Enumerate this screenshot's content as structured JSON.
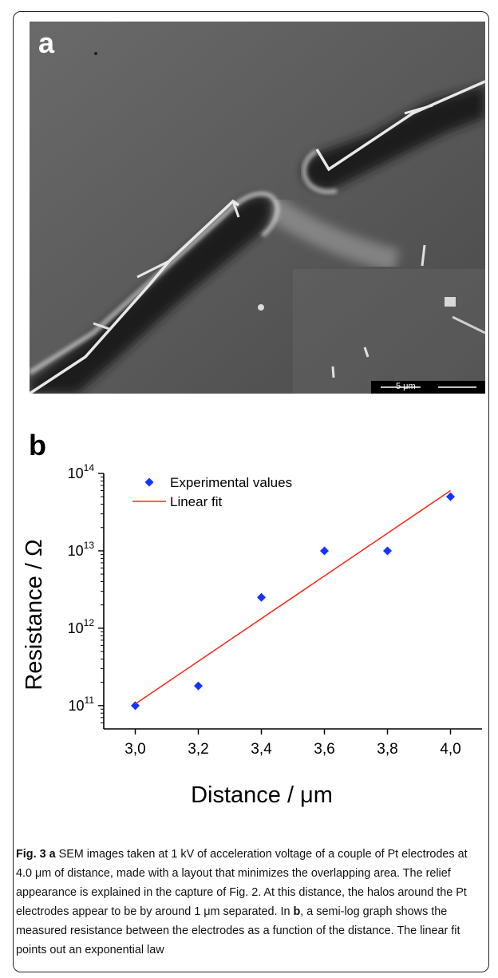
{
  "figure": {
    "panel_a_label": "a",
    "panel_b_label": "b",
    "scale_bar_text": "5 μm",
    "caption": {
      "fig_ref": "Fig. 3",
      "panel_a_ref": "a",
      "text_1": " SEM images taken at 1 kV of acceleration voltage of a couple of Pt electrodes at 4.0 μm of distance, made with a layout that minimizes the overlapping area. The relief appearance is explained in the capture of Fig. 2. At this distance, the halos around the Pt electrodes appear to be by around 1 μm separated. In ",
      "panel_b_ref": "b",
      "text_2": ", a semi-log graph shows the measured resistance between the electrodes as a function of the distance. The linear fit points out an exponential law"
    }
  },
  "chart_data": {
    "type": "scatter",
    "xlabel": "Distance / μm",
    "ylabel": "Resistance / Ω",
    "y_scale": "log",
    "xlim": [
      2.9,
      4.1
    ],
    "ylim": [
      50000000000.0,
      100000000000000.0
    ],
    "x_ticks": [
      "3,0",
      "3,2",
      "3,4",
      "3,6",
      "3,8",
      "4,0"
    ],
    "x_tick_values": [
      3.0,
      3.2,
      3.4,
      3.6,
      3.8,
      4.0
    ],
    "y_ticks": [
      {
        "base": "10",
        "exp": "11",
        "value": 100000000000.0
      },
      {
        "base": "10",
        "exp": "12",
        "value": 1000000000000.0
      },
      {
        "base": "10",
        "exp": "13",
        "value": 10000000000000.0
      },
      {
        "base": "10",
        "exp": "14",
        "value": 100000000000000.0
      }
    ],
    "legend_position": "top-left",
    "series": [
      {
        "name": "Experimental values",
        "kind": "points",
        "marker": "diamond",
        "color": "#1433ff",
        "x": [
          3.0,
          3.2,
          3.4,
          3.6,
          3.8,
          4.0
        ],
        "y": [
          100000000000.0,
          180000000000.0,
          2500000000000.0,
          10000000000000.0,
          10000000000000.0,
          50000000000000.0
        ]
      },
      {
        "name": "Linear fit",
        "kind": "line",
        "color": "#ff2a1a",
        "x": [
          3.0,
          4.0
        ],
        "y": [
          105000000000.0,
          60000000000000.0
        ]
      }
    ]
  }
}
